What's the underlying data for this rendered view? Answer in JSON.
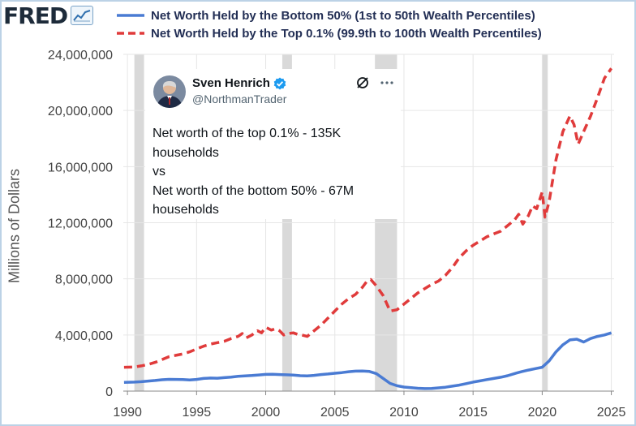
{
  "header": {
    "logo_text": "FRED",
    "logo_icon": "line-chart-icon"
  },
  "legend": [
    {
      "label": "Net Worth Held by the Bottom 50% (1st to 50th Wealth Percentiles)",
      "color": "#4a7bd3",
      "style": "solid"
    },
    {
      "label": "Net Worth Held by the Top 0.1% (99.9th to 100th Wealth Percentiles)",
      "color": "#e03b3b",
      "style": "dashed"
    }
  ],
  "chart_data": {
    "type": "line",
    "ylabel": "Millions of Dollars",
    "xlabel": "",
    "xlim": [
      1989.7,
      2025.2
    ],
    "ylim": [
      0,
      24000000
    ],
    "y_ticks": [
      0,
      4000000,
      8000000,
      12000000,
      16000000,
      20000000,
      24000000
    ],
    "y_tick_labels": [
      "0",
      "4,000,000",
      "8,000,000",
      "12,000,000",
      "16,000,000",
      "20,000,000",
      "24,000,000"
    ],
    "x_ticks": [
      1990,
      1995,
      2000,
      2005,
      2010,
      2015,
      2020,
      2025
    ],
    "x_tick_labels": [
      "1990",
      "1995",
      "2000",
      "2005",
      "2010",
      "2015",
      "2020",
      "2025"
    ],
    "recessions": [
      [
        1990.5,
        1991.2
      ],
      [
        2001.2,
        2001.9
      ],
      [
        2007.9,
        2009.5
      ],
      [
        2020.0,
        2020.4
      ]
    ],
    "series": [
      {
        "name": "Net Worth Held by the Bottom 50% (1st to 50th Wealth Percentiles)",
        "color": "#4a7bd3",
        "dash": "",
        "x": [
          1989.75,
          1990.5,
          1991.0,
          1991.5,
          1992.0,
          1992.5,
          1993.0,
          1993.5,
          1994.0,
          1994.5,
          1995.0,
          1995.5,
          1996.0,
          1996.5,
          1997.0,
          1997.5,
          1998.0,
          1998.5,
          1999.0,
          1999.5,
          2000.0,
          2000.5,
          2001.0,
          2001.5,
          2002.0,
          2002.5,
          2003.0,
          2003.5,
          2004.0,
          2004.5,
          2005.0,
          2005.5,
          2006.0,
          2006.5,
          2007.0,
          2007.5,
          2008.0,
          2008.5,
          2009.0,
          2009.5,
          2010.0,
          2010.5,
          2011.0,
          2011.5,
          2012.0,
          2012.5,
          2013.0,
          2013.5,
          2014.0,
          2014.5,
          2015.0,
          2015.5,
          2016.0,
          2016.5,
          2017.0,
          2017.5,
          2018.0,
          2018.5,
          2019.0,
          2019.5,
          2020.0,
          2020.5,
          2021.0,
          2021.5,
          2022.0,
          2022.5,
          2023.0,
          2023.5,
          2024.0,
          2024.5,
          2025.0
        ],
        "values": [
          620000,
          640000,
          670000,
          720000,
          760000,
          810000,
          840000,
          830000,
          820000,
          800000,
          830000,
          900000,
          930000,
          920000,
          960000,
          1000000,
          1060000,
          1090000,
          1110000,
          1150000,
          1190000,
          1200000,
          1180000,
          1160000,
          1140000,
          1100000,
          1080000,
          1120000,
          1180000,
          1220000,
          1270000,
          1320000,
          1380000,
          1420000,
          1430000,
          1400000,
          1250000,
          900000,
          550000,
          380000,
          290000,
          250000,
          200000,
          180000,
          190000,
          230000,
          280000,
          350000,
          430000,
          530000,
          640000,
          730000,
          820000,
          900000,
          990000,
          1100000,
          1250000,
          1380000,
          1500000,
          1600000,
          1700000,
          2150000,
          2800000,
          3300000,
          3650000,
          3700000,
          3500000,
          3750000,
          3900000,
          4000000,
          4150000
        ]
      },
      {
        "name": "Net Worth Held by the Top 0.1% (99.9th to 100th Wealth Percentiles)",
        "color": "#e03b3b",
        "dash": "10,6",
        "x": [
          1989.75,
          1990.5,
          1991.0,
          1991.5,
          1992.0,
          1992.5,
          1993.0,
          1993.5,
          1994.0,
          1994.5,
          1995.0,
          1995.5,
          1996.0,
          1996.5,
          1997.0,
          1997.5,
          1998.0,
          1998.3,
          1998.6,
          1999.0,
          1999.4,
          1999.7,
          2000.0,
          2000.4,
          2000.7,
          2001.0,
          2001.3,
          2001.6,
          2002.0,
          2002.3,
          2002.6,
          2003.0,
          2003.5,
          2004.0,
          2004.5,
          2005.0,
          2005.5,
          2006.0,
          2006.5,
          2007.0,
          2007.3,
          2007.6,
          2008.0,
          2008.5,
          2009.0,
          2009.5,
          2010.0,
          2010.5,
          2011.0,
          2011.5,
          2012.0,
          2012.5,
          2013.0,
          2013.5,
          2014.0,
          2014.5,
          2015.0,
          2015.5,
          2016.0,
          2016.5,
          2017.0,
          2017.5,
          2018.0,
          2018.3,
          2018.6,
          2019.0,
          2019.3,
          2019.6,
          2020.0,
          2020.2,
          2020.5,
          2021.0,
          2021.5,
          2022.0,
          2022.3,
          2022.6,
          2023.0,
          2023.5,
          2024.0,
          2024.5,
          2025.0
        ],
        "values": [
          1700000,
          1720000,
          1800000,
          1900000,
          2050000,
          2250000,
          2450000,
          2550000,
          2650000,
          2800000,
          3000000,
          3200000,
          3350000,
          3450000,
          3550000,
          3750000,
          3900000,
          4100000,
          3800000,
          4000000,
          4300000,
          4150000,
          4550000,
          4350000,
          4450000,
          4300000,
          4000000,
          4100000,
          4150000,
          4050000,
          4000000,
          3900000,
          4300000,
          4700000,
          5200000,
          5700000,
          6200000,
          6600000,
          6900000,
          7400000,
          7800000,
          7950000,
          7500000,
          6800000,
          5700000,
          5800000,
          6200000,
          6600000,
          7000000,
          7300000,
          7600000,
          7850000,
          8250000,
          8800000,
          9500000,
          10000000,
          10400000,
          10700000,
          11000000,
          11200000,
          11400000,
          11800000,
          12200000,
          12600000,
          11900000,
          12500000,
          13200000,
          13000000,
          14200000,
          12400000,
          13500000,
          16500000,
          18500000,
          19600000,
          19000000,
          17600000,
          18500000,
          19600000,
          20900000,
          22300000,
          23000000
        ]
      }
    ]
  },
  "tweet": {
    "name": "Sven Henrich",
    "handle": "@NorthmanTrader",
    "verified_icon": "verified-badge-icon",
    "lines": [
      "Net worth of the top 0.1% - 135K",
      "households",
      "vs",
      "Net worth of the bottom 50% - 67M",
      "households"
    ]
  }
}
